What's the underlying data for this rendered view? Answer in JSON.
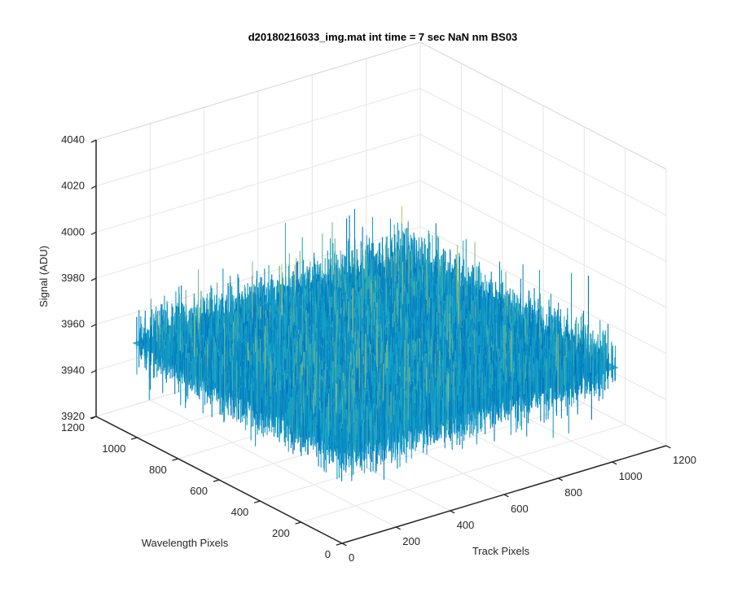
{
  "chart_data": {
    "type": "surface-3d",
    "title": "d20180216033_img.mat int time = 7 sec  NaN nm BS03",
    "xlabel": "Track Pixels",
    "ylabel": "Wavelength Pixels",
    "zlabel": "Signal (ADU)",
    "xlim": [
      0,
      1200
    ],
    "ylim": [
      0,
      1200
    ],
    "zlim": [
      3920,
      4040
    ],
    "xticks": [
      "0",
      "200",
      "400",
      "600",
      "800",
      "1000",
      "1200"
    ],
    "yticks": [
      "0",
      "200",
      "400",
      "600",
      "800",
      "1000",
      "1200"
    ],
    "zticks": [
      "3920",
      "3940",
      "3960",
      "3980",
      "4000",
      "4020",
      "4040"
    ],
    "data_extent": {
      "x": [
        0,
        1024
      ],
      "y": [
        0,
        1024
      ]
    },
    "signal_mean": 3960,
    "signal_noise_range": [
      3935,
      3990
    ],
    "colormap": "parula",
    "colors": {
      "low": "#0072bd",
      "mid": "#16a6c9",
      "high": "#e5c94a",
      "grid": "#e6e6e6",
      "axis": "#262626"
    },
    "grid": true
  }
}
